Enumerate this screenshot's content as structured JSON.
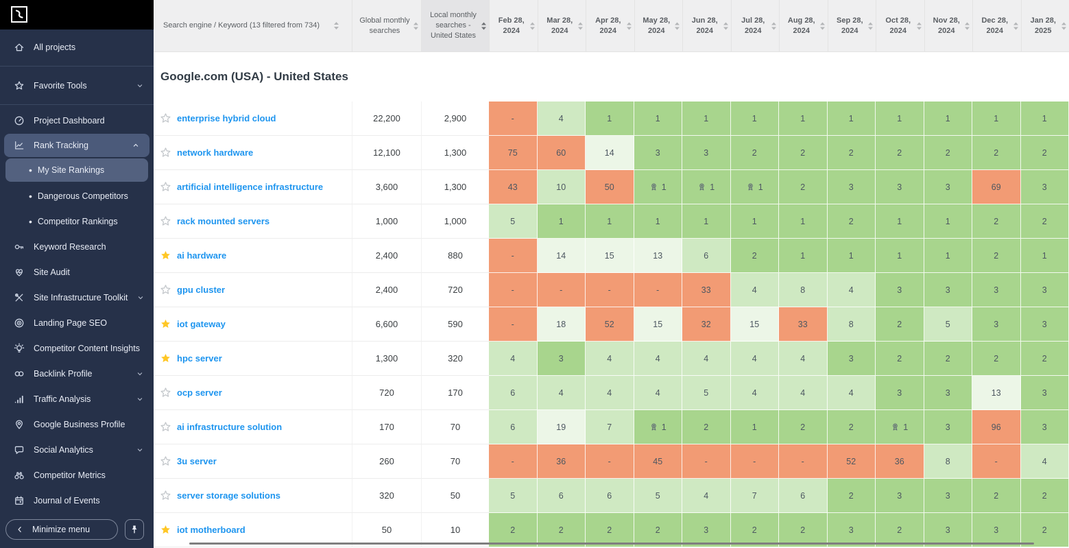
{
  "sidebar": {
    "logo": "brand-logo",
    "sections": [
      {
        "items": [
          {
            "label": "All projects",
            "icon": "home"
          }
        ]
      },
      {
        "items": [
          {
            "label": "Favorite Tools",
            "icon": "star",
            "chevron": "down"
          }
        ]
      },
      {
        "items": [
          {
            "label": "Project Dashboard",
            "icon": "gauge"
          },
          {
            "label": "Rank Tracking",
            "icon": "chart-line",
            "chevron": "up",
            "active": true,
            "children": [
              {
                "label": "My Site Rankings",
                "active": true
              },
              {
                "label": "Dangerous Competitors"
              },
              {
                "label": "Competitor Rankings"
              }
            ]
          },
          {
            "label": "Keyword Research",
            "icon": "key"
          },
          {
            "label": "Site Audit",
            "icon": "heart-pulse"
          },
          {
            "label": "Site Infrastructure Toolkit",
            "icon": "tools",
            "chevron": "down"
          },
          {
            "label": "Landing Page SEO",
            "icon": "target"
          },
          {
            "label": "Competitor Content Insights",
            "icon": "bulb"
          },
          {
            "label": "Backlink Profile",
            "icon": "link",
            "chevron": "down"
          },
          {
            "label": "Traffic Analysis",
            "icon": "bar-chart",
            "chevron": "down"
          },
          {
            "label": "Google Business Profile",
            "icon": "location-pin"
          },
          {
            "label": "Social Analytics",
            "icon": "chat-bubble",
            "chevron": "down"
          },
          {
            "label": "Competitor Metrics",
            "icon": "binoculars"
          },
          {
            "label": "Journal of Events",
            "icon": "calendar"
          }
        ]
      }
    ],
    "minimize_label": "Minimize menu"
  },
  "table": {
    "header": {
      "keyword": "Search engine / Keyword (13 filtered from 734)",
      "global": "Global monthly searches",
      "local": "Local monthly searches - United States",
      "dates": [
        "Feb 28, 2024",
        "Mar 28, 2024",
        "Apr 28, 2024",
        "May 28, 2024",
        "Jun 28, 2024",
        "Jul 28, 2024",
        "Aug 28, 2024",
        "Sep 28, 2024",
        "Oct 28, 2024",
        "Nov 28, 2024",
        "Dec 28, 2024",
        "Jan 28, 2025"
      ]
    },
    "group_title": "Google.com (USA) - United States",
    "rows": [
      {
        "starred": false,
        "keyword": "enterprise hybrid cloud",
        "global": "22,200",
        "local": "2,900",
        "ranks": [
          "-",
          "4",
          "1",
          "1",
          "1",
          "1",
          "1",
          "1",
          "1",
          "1",
          "1",
          "1"
        ],
        "medals": []
      },
      {
        "starred": false,
        "keyword": "network hardware",
        "global": "12,100",
        "local": "1,300",
        "ranks": [
          "75",
          "60",
          "14",
          "3",
          "3",
          "2",
          "2",
          "2",
          "2",
          "2",
          "2",
          "2"
        ],
        "medals": []
      },
      {
        "starred": false,
        "keyword": "artificial intelligence infrastructure",
        "global": "3,600",
        "local": "1,300",
        "ranks": [
          "43",
          "10",
          "50",
          "1",
          "1",
          "1",
          "2",
          "3",
          "3",
          "3",
          "69",
          "3"
        ],
        "medals": [
          3,
          4,
          5
        ]
      },
      {
        "starred": false,
        "keyword": "rack mounted servers",
        "global": "1,000",
        "local": "1,000",
        "ranks": [
          "5",
          "1",
          "1",
          "1",
          "1",
          "1",
          "1",
          "2",
          "1",
          "1",
          "2",
          "2"
        ],
        "medals": []
      },
      {
        "starred": true,
        "keyword": "ai hardware",
        "global": "2,400",
        "local": "880",
        "ranks": [
          "-",
          "14",
          "15",
          "13",
          "6",
          "2",
          "1",
          "1",
          "1",
          "1",
          "2",
          "1"
        ],
        "medals": []
      },
      {
        "starred": false,
        "keyword": "gpu cluster",
        "global": "2,400",
        "local": "720",
        "ranks": [
          "-",
          "-",
          "-",
          "-",
          "33",
          "4",
          "8",
          "4",
          "3",
          "3",
          "3",
          "3"
        ],
        "medals": []
      },
      {
        "starred": true,
        "keyword": "iot gateway",
        "global": "6,600",
        "local": "590",
        "ranks": [
          "-",
          "18",
          "52",
          "15",
          "32",
          "15",
          "33",
          "8",
          "2",
          "5",
          "3",
          "3"
        ],
        "medals": []
      },
      {
        "starred": true,
        "keyword": "hpc server",
        "global": "1,300",
        "local": "320",
        "ranks": [
          "4",
          "3",
          "4",
          "4",
          "4",
          "4",
          "4",
          "3",
          "2",
          "2",
          "2",
          "2"
        ],
        "medals": []
      },
      {
        "starred": false,
        "keyword": "ocp server",
        "global": "720",
        "local": "170",
        "ranks": [
          "6",
          "4",
          "4",
          "4",
          "5",
          "4",
          "4",
          "4",
          "3",
          "3",
          "13",
          "3"
        ],
        "medals": []
      },
      {
        "starred": false,
        "keyword": "ai infrastructure solution",
        "global": "170",
        "local": "70",
        "ranks": [
          "6",
          "19",
          "7",
          "1",
          "2",
          "1",
          "2",
          "2",
          "1",
          "3",
          "96",
          "3"
        ],
        "medals": [
          3,
          8
        ]
      },
      {
        "starred": false,
        "keyword": "3u server",
        "global": "260",
        "local": "70",
        "ranks": [
          "-",
          "36",
          "-",
          "45",
          "-",
          "-",
          "-",
          "52",
          "36",
          "8",
          "-",
          "4"
        ],
        "medals": []
      },
      {
        "starred": false,
        "keyword": "server storage solutions",
        "global": "320",
        "local": "50",
        "ranks": [
          "5",
          "6",
          "6",
          "5",
          "4",
          "7",
          "6",
          "2",
          "3",
          "3",
          "2",
          "2"
        ],
        "medals": []
      },
      {
        "starred": true,
        "keyword": "iot motherboard",
        "global": "50",
        "local": "10",
        "ranks": [
          "2",
          "2",
          "2",
          "2",
          "3",
          "2",
          "2",
          "3",
          "2",
          "3",
          "3",
          "2"
        ],
        "medals": []
      }
    ]
  },
  "colors": {
    "sidebar_bg": "#263149",
    "sidebar_active_bg": "#4b5a7a",
    "link_blue": "#1e95ef",
    "favorite_star": "#ffc726",
    "rank_good_green": "#a8d58d",
    "rank_mid_green": "#cfe9c2",
    "rank_light_green": "#ecf6e7",
    "rank_bad_orange": "#f29b74",
    "header_bg": "#efeff0",
    "header_active_col_bg": "#e4e4e6"
  }
}
